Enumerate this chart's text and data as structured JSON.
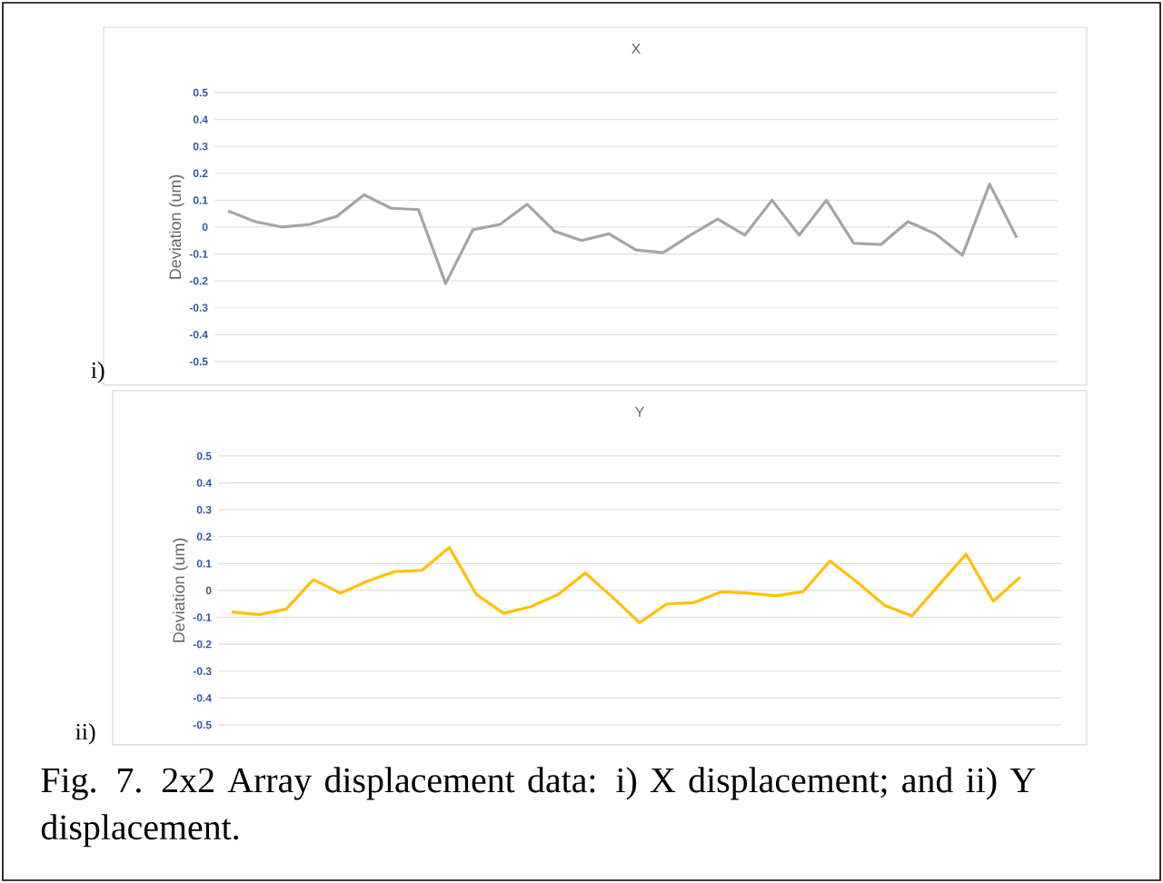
{
  "chart_data": [
    {
      "type": "line",
      "title": "X",
      "ylabel": "Deviation (um)",
      "categories": [
        null,
        null,
        null,
        null,
        null,
        null,
        null,
        null,
        null,
        null,
        null,
        null,
        null,
        null,
        null,
        null,
        null,
        null,
        null,
        null,
        null,
        null,
        null,
        null,
        null,
        null,
        null,
        null,
        null,
        null
      ],
      "values": [
        0.06,
        0.02,
        0,
        0.01,
        0.04,
        0.12,
        0.07,
        0.065,
        -0.21,
        -0.01,
        0.01,
        0.085,
        -0.015,
        -0.05,
        -0.025,
        -0.085,
        -0.095,
        -0.03,
        0.03,
        -0.03,
        0.1,
        -0.03,
        0.1,
        -0.06,
        -0.065,
        0.02,
        -0.025,
        -0.105,
        0.16,
        -0.04
      ],
      "color": "#a5a5a5",
      "ylim": [
        -0.5,
        0.5
      ],
      "yticks": [
        0.5,
        0.4,
        0.3,
        0.2,
        0.1,
        0,
        -0.1,
        -0.2,
        -0.3,
        -0.4,
        -0.5
      ],
      "grid": "y",
      "tick_labels": "y",
      "marker": "none",
      "annotations": [
        "i)"
      ]
    },
    {
      "type": "line",
      "title": "Y",
      "ylabel": "Deviation (um)",
      "categories": [
        null,
        null,
        null,
        null,
        null,
        null,
        null,
        null,
        null,
        null,
        null,
        null,
        null,
        null,
        null,
        null,
        null,
        null,
        null,
        null,
        null,
        null,
        null,
        null,
        null,
        null,
        null,
        null,
        null,
        null
      ],
      "values": [
        -0.08,
        -0.09,
        -0.07,
        0.04,
        -0.01,
        0.035,
        0.07,
        0.075,
        0.16,
        -0.015,
        -0.085,
        -0.06,
        -0.015,
        0.065,
        -0.025,
        -0.12,
        -0.05,
        -0.045,
        -0.005,
        -0.01,
        -0.02,
        -0.005,
        0.11,
        0.03,
        -0.055,
        -0.095,
        0.02,
        0.135,
        -0.04,
        0.05
      ],
      "color": "#ffc000",
      "ylim": [
        -0.5,
        0.5
      ],
      "yticks": [
        0.5,
        0.4,
        0.3,
        0.2,
        0.1,
        0,
        -0.1,
        -0.2,
        -0.3,
        -0.4,
        -0.5
      ],
      "grid": "y",
      "tick_labels": "y",
      "marker": "none",
      "annotations": [
        "ii)",
        "Fig. 7. 2x2 Array displacement data: i) X displacement; and ii) Y displacement."
      ]
    }
  ]
}
